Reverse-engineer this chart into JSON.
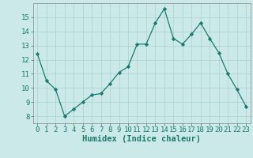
{
  "x": [
    0,
    1,
    2,
    3,
    4,
    5,
    6,
    7,
    8,
    9,
    10,
    11,
    12,
    13,
    14,
    15,
    16,
    17,
    18,
    19,
    20,
    21,
    22,
    23
  ],
  "y": [
    12.4,
    10.5,
    9.9,
    8.0,
    8.5,
    9.0,
    9.5,
    9.6,
    10.3,
    11.1,
    11.5,
    13.1,
    13.1,
    14.6,
    15.6,
    13.5,
    13.1,
    13.8,
    14.6,
    13.5,
    12.5,
    11.0,
    9.9,
    8.7
  ],
  "line_color": "#1a7a6e",
  "marker": "D",
  "marker_size": 2.2,
  "bg_color": "#cce9e9",
  "grid_color": "#aad0d0",
  "xlabel": "Humidex (Indice chaleur)",
  "xlim": [
    -0.5,
    23.5
  ],
  "ylim": [
    7.5,
    16.0
  ],
  "yticks": [
    8,
    9,
    10,
    11,
    12,
    13,
    14,
    15
  ],
  "xticks": [
    0,
    1,
    2,
    3,
    4,
    5,
    6,
    7,
    8,
    9,
    10,
    11,
    12,
    13,
    14,
    15,
    16,
    17,
    18,
    19,
    20,
    21,
    22,
    23
  ],
  "xlabel_fontsize": 7.5,
  "tick_fontsize": 6.5,
  "line_color_hex": "#1a7a6e",
  "spine_color": "#888888"
}
